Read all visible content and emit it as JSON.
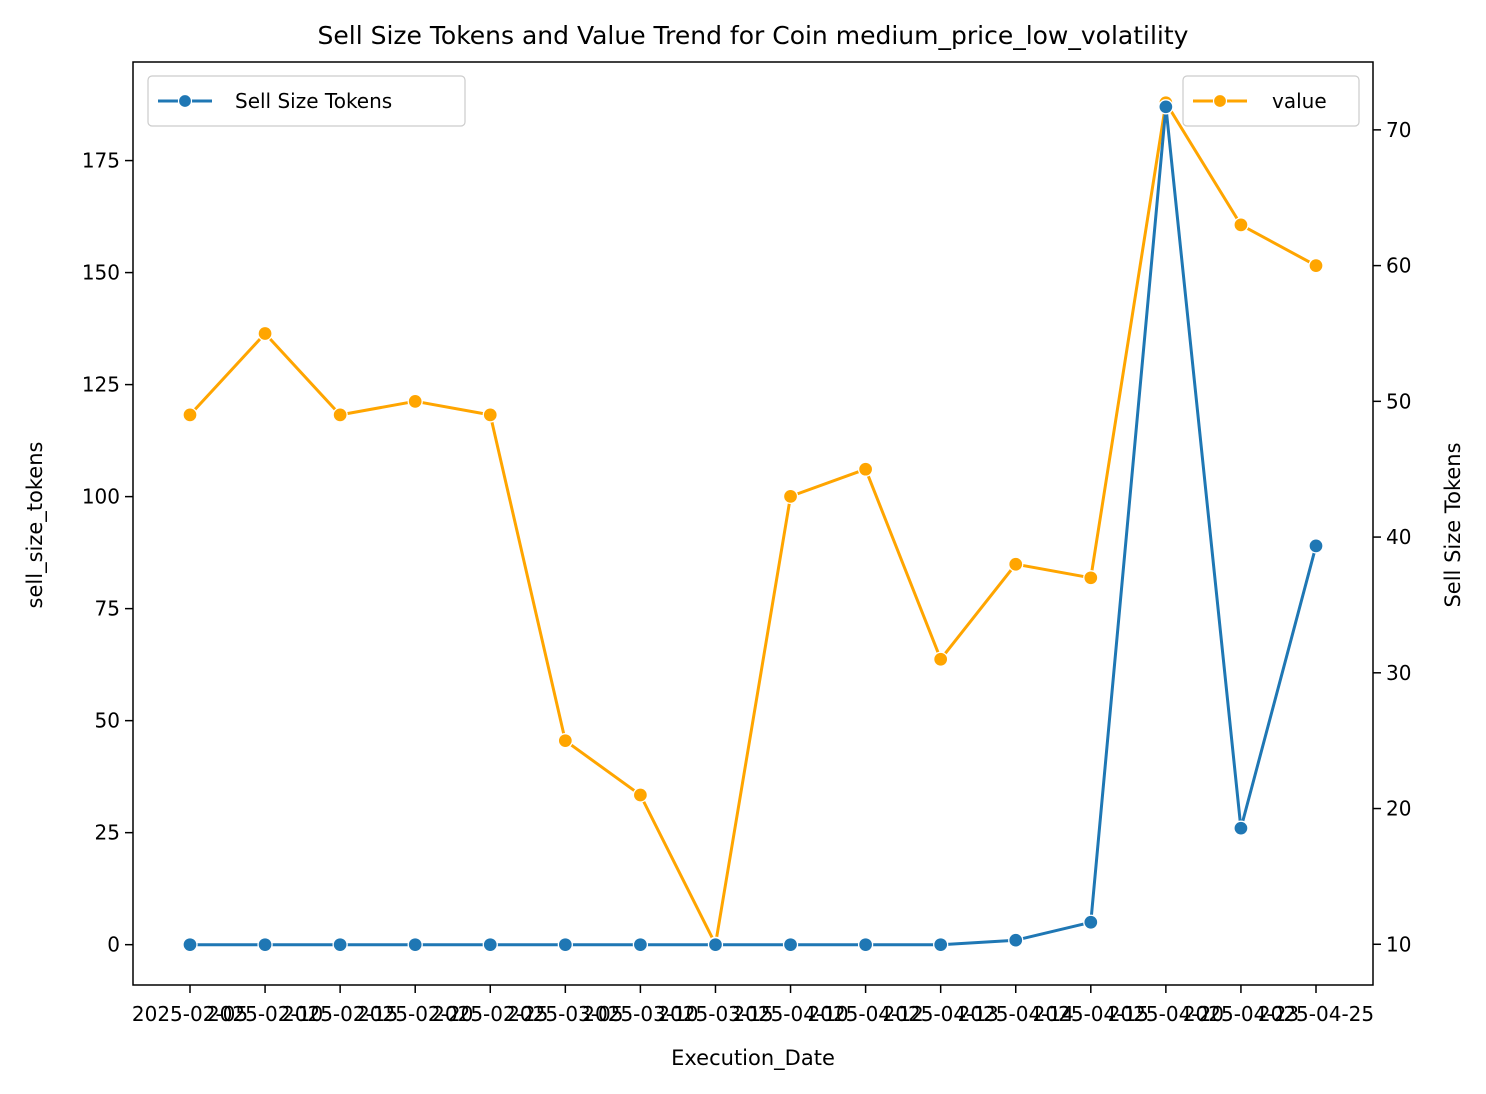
{
  "chart_data": {
    "type": "line",
    "title": "Sell Size Tokens and Value Trend for Coin medium_price_low_volatility",
    "xlabel": "Execution_Date",
    "ylabel_left": "sell_size_tokens",
    "ylabel_right": "Sell Size Tokens",
    "x_tick_labels": [
      "2025-02-05",
      "2025-02-10",
      "2025-02-15",
      "2025-02-20",
      "2025-02-25",
      "2025-03-05",
      "2025-03-10",
      "2025-03-15",
      "2025-04-10",
      "2025-04-12",
      "2025-04-13",
      "2025-04-14",
      "2025-04-15",
      "2025-04-20",
      "2025-04-23",
      "2025-04-25"
    ],
    "left_axis": {
      "ylim": [
        -9,
        197
      ],
      "ticks": [
        0,
        25,
        50,
        75,
        100,
        125,
        150,
        175
      ]
    },
    "right_axis": {
      "ylim": [
        7,
        75
      ],
      "ticks": [
        10,
        20,
        30,
        40,
        50,
        60,
        70
      ]
    },
    "series": [
      {
        "name": "Sell Size Tokens",
        "axis": "left",
        "color": "#1f77b4",
        "values": [
          0,
          0,
          0,
          0,
          0,
          0,
          0,
          0,
          0,
          0,
          0,
          1,
          5,
          187,
          26,
          89
        ]
      },
      {
        "name": "value",
        "axis": "right",
        "color": "#ffa500",
        "values": [
          49,
          55,
          49,
          50,
          49,
          25,
          21,
          10,
          43,
          45,
          31,
          38,
          37,
          72,
          63,
          60
        ]
      }
    ],
    "legend_left": {
      "label": "Sell Size Tokens",
      "placement": "upper-left"
    },
    "legend_right": {
      "label": "value",
      "placement": "upper-right"
    },
    "grid": false
  }
}
